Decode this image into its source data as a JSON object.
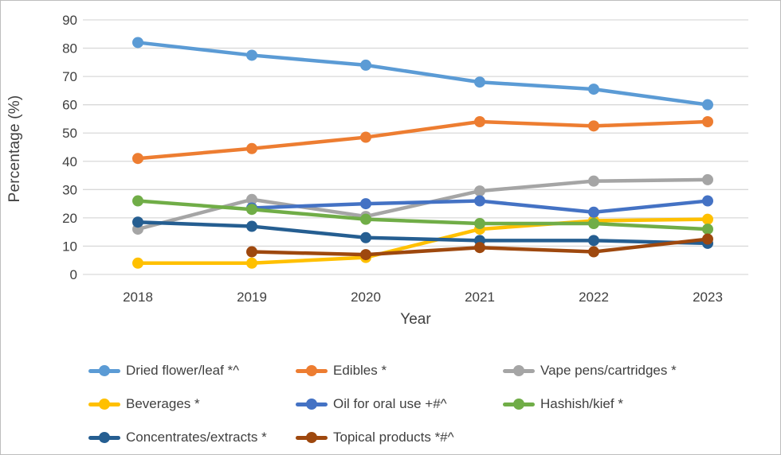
{
  "chart_data": {
    "type": "line",
    "title": "",
    "xlabel": "Year",
    "ylabel": "Percentage (%)",
    "categories": [
      "2018",
      "2019",
      "2020",
      "2021",
      "2022",
      "2023"
    ],
    "ylim": [
      0,
      90
    ],
    "ytick_step": 10,
    "grid": true,
    "legend_position": "bottom",
    "gridline_color": "#D9D9D9",
    "axis_text_color": "#404040",
    "series": [
      {
        "name": "Dried flower/leaf *^",
        "color": "#5B9BD5",
        "values": [
          82,
          77.5,
          74,
          68,
          65.5,
          60
        ]
      },
      {
        "name": "Edibles *",
        "color": "#ED7D31",
        "values": [
          41,
          44.5,
          48.5,
          54,
          52.5,
          54
        ]
      },
      {
        "name": "Vape pens/cartridges *",
        "color": "#A5A5A5",
        "values": [
          16,
          26.5,
          20.5,
          29.5,
          33,
          33.5
        ]
      },
      {
        "name": "Beverages *",
        "color": "#FFC000",
        "values": [
          4,
          4,
          6,
          16,
          19,
          19.5
        ]
      },
      {
        "name": "Oil for oral use +#^",
        "color": "#4472C4",
        "values": [
          null,
          23.5,
          25,
          26,
          22,
          26
        ]
      },
      {
        "name": "Hashish/kief *",
        "color": "#70AD47",
        "values": [
          26,
          23,
          19.5,
          18,
          18,
          16
        ]
      },
      {
        "name": "Concentrates/extracts *",
        "color": "#255E91",
        "values": [
          18.5,
          17,
          13,
          12,
          12,
          11
        ]
      },
      {
        "name": "Topical products *#^",
        "color": "#9E480E",
        "values": [
          null,
          8,
          7,
          9.5,
          8,
          12.5
        ]
      }
    ]
  }
}
